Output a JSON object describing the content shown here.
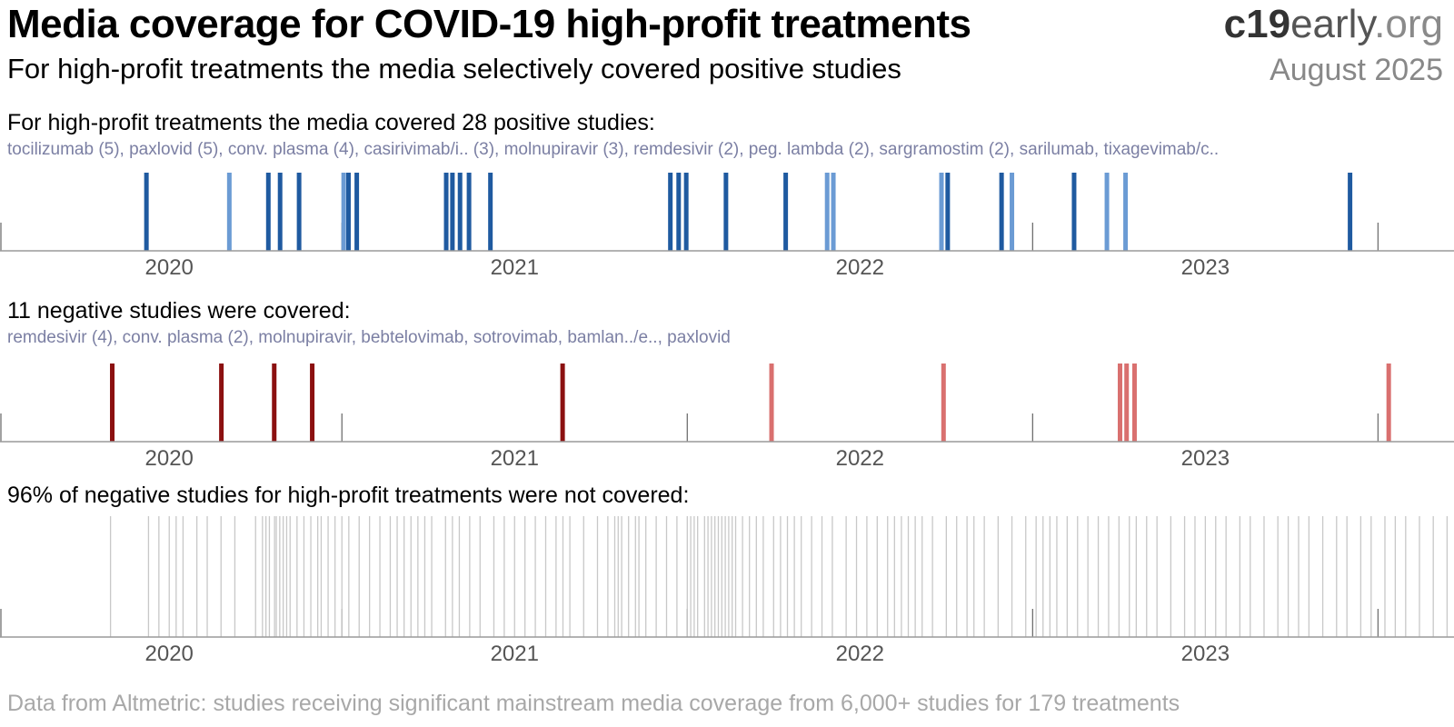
{
  "header": {
    "title": "Media coverage for COVID-19 high-profit treatments",
    "subtitle": "For high-profit treatments the media selectively covered positive studies",
    "brand": {
      "part1": "c19",
      "part2": "early",
      "part3": ".org"
    },
    "date": "August 2025"
  },
  "footer": "Data from Altmetric: studies receiving significant mainstream media coverage from 6,000+ studies for 179 treatments",
  "colors": {
    "positive_dark": "#1f5aa0",
    "positive_light": "#6b9bd4",
    "negative_dark": "#8b1010",
    "negative_light": "#d9706f",
    "uncovered": "#c8c8c8",
    "axis": "#9a9a9a",
    "tick": "#707070"
  },
  "chart_data": [
    {
      "type": "timeline",
      "id": "positive",
      "heading": "For high-profit treatments the media covered 28 positive studies:",
      "treatments": "tocilizumab (5), paxlovid (5), conv. plasma (4), casirivimab/i.. (3), molnupiravir (3), remdesivir (2), peg. lambda (2), sargramostim (2), sarilumab, tixagevimab/c..",
      "x_range": [
        2019.51,
        2023.72
      ],
      "xticks": [
        "2020",
        "2021",
        "2022",
        "2023"
      ],
      "events": [
        {
          "t": 2019.934,
          "shade": "dark"
        },
        {
          "t": 2020.174,
          "shade": "light"
        },
        {
          "t": 2020.287,
          "shade": "dark"
        },
        {
          "t": 2020.321,
          "shade": "dark"
        },
        {
          "t": 2020.376,
          "shade": "dark"
        },
        {
          "t": 2020.505,
          "shade": "light"
        },
        {
          "t": 2020.519,
          "shade": "dark"
        },
        {
          "t": 2020.543,
          "shade": "dark"
        },
        {
          "t": 2020.802,
          "shade": "dark"
        },
        {
          "t": 2020.82,
          "shade": "dark"
        },
        {
          "t": 2020.842,
          "shade": "dark"
        },
        {
          "t": 2020.868,
          "shade": "dark"
        },
        {
          "t": 2020.93,
          "shade": "dark"
        },
        {
          "t": 2021.451,
          "shade": "dark"
        },
        {
          "t": 2021.475,
          "shade": "dark"
        },
        {
          "t": 2021.497,
          "shade": "dark"
        },
        {
          "t": 2021.612,
          "shade": "dark"
        },
        {
          "t": 2021.785,
          "shade": "dark"
        },
        {
          "t": 2021.905,
          "shade": "light"
        },
        {
          "t": 2021.923,
          "shade": "light"
        },
        {
          "t": 2022.236,
          "shade": "light"
        },
        {
          "t": 2022.254,
          "shade": "dark"
        },
        {
          "t": 2022.41,
          "shade": "dark"
        },
        {
          "t": 2022.44,
          "shade": "light"
        },
        {
          "t": 2022.62,
          "shade": "dark"
        },
        {
          "t": 2022.715,
          "shade": "light"
        },
        {
          "t": 2022.769,
          "shade": "light"
        },
        {
          "t": 2023.419,
          "shade": "dark"
        }
      ]
    },
    {
      "type": "timeline",
      "id": "negative",
      "heading": "11 negative studies were covered:",
      "treatments": "remdesivir (4), conv. plasma (2), molnupiravir, bebtelovimab, sotrovimab, bamlan../e.., paxlovid",
      "x_range": [
        2019.51,
        2023.72
      ],
      "xticks": [
        "2020",
        "2021",
        "2022",
        "2023"
      ],
      "events": [
        {
          "t": 2019.835,
          "shade": "dark"
        },
        {
          "t": 2020.151,
          "shade": "dark"
        },
        {
          "t": 2020.304,
          "shade": "dark"
        },
        {
          "t": 2020.414,
          "shade": "dark"
        },
        {
          "t": 2021.139,
          "shade": "dark"
        },
        {
          "t": 2021.744,
          "shade": "light"
        },
        {
          "t": 2022.242,
          "shade": "light"
        },
        {
          "t": 2022.753,
          "shade": "light"
        },
        {
          "t": 2022.772,
          "shade": "light"
        },
        {
          "t": 2022.795,
          "shade": "light"
        },
        {
          "t": 2023.531,
          "shade": "light"
        }
      ]
    },
    {
      "type": "timeline",
      "id": "uncovered",
      "heading": "96% of negative studies for high-profit treatments were not covered:",
      "x_range": [
        2019.51,
        2023.72
      ],
      "xticks": [
        "2020",
        "2021",
        "2022",
        "2023"
      ],
      "events": [
        2019.83,
        2019.94,
        2019.97,
        2020.0,
        2020.02,
        2020.04,
        2020.08,
        2020.11,
        2020.15,
        2020.19,
        2020.25,
        2020.27,
        2020.28,
        2020.29,
        2020.305,
        2020.31,
        2020.32,
        2020.33,
        2020.34,
        2020.35,
        2020.37,
        2020.39,
        2020.41,
        2020.43,
        2020.44,
        2020.46,
        2020.48,
        2020.5,
        2020.52,
        2020.55,
        2020.58,
        2020.61,
        2020.64,
        2020.66,
        2020.68,
        2020.7,
        2020.72,
        2020.74,
        2020.76,
        2020.8,
        2020.82,
        2020.84,
        2020.87,
        2020.9,
        2020.94,
        2020.97,
        2021.0,
        2021.03,
        2021.06,
        2021.09,
        2021.12,
        2021.14,
        2021.16,
        2021.2,
        2021.24,
        2021.27,
        2021.29,
        2021.3,
        2021.31,
        2021.33,
        2021.35,
        2021.36,
        2021.38,
        2021.41,
        2021.44,
        2021.47,
        2021.5,
        2021.51,
        2021.52,
        2021.53,
        2021.55,
        2021.56,
        2021.57,
        2021.58,
        2021.59,
        2021.6,
        2021.61,
        2021.62,
        2021.63,
        2021.64,
        2021.66,
        2021.68,
        2021.7,
        2021.72,
        2021.75,
        2021.77,
        2021.79,
        2021.81,
        2021.83,
        2021.86,
        2021.89,
        2021.92,
        2021.96,
        2021.99,
        2022.02,
        2022.05,
        2022.08,
        2022.1,
        2022.12,
        2022.14,
        2022.16,
        2022.18,
        2022.21,
        2022.25,
        2022.28,
        2022.31,
        2022.33,
        2022.36,
        2022.4,
        2022.44,
        2022.48,
        2022.51,
        2022.53,
        2022.55,
        2022.57,
        2022.6,
        2022.63,
        2022.66,
        2022.69,
        2022.72,
        2022.75,
        2022.78,
        2022.8,
        2022.83,
        2022.86,
        2022.9,
        2022.94,
        2022.97,
        2023.0,
        2023.03,
        2023.06,
        2023.1,
        2023.13,
        2023.17,
        2023.21,
        2023.24,
        2023.27,
        2023.3,
        2023.34,
        2023.38,
        2023.41,
        2023.45,
        2023.48,
        2023.52,
        2023.55,
        2023.58,
        2023.62,
        2023.66,
        2023.7
      ]
    }
  ]
}
